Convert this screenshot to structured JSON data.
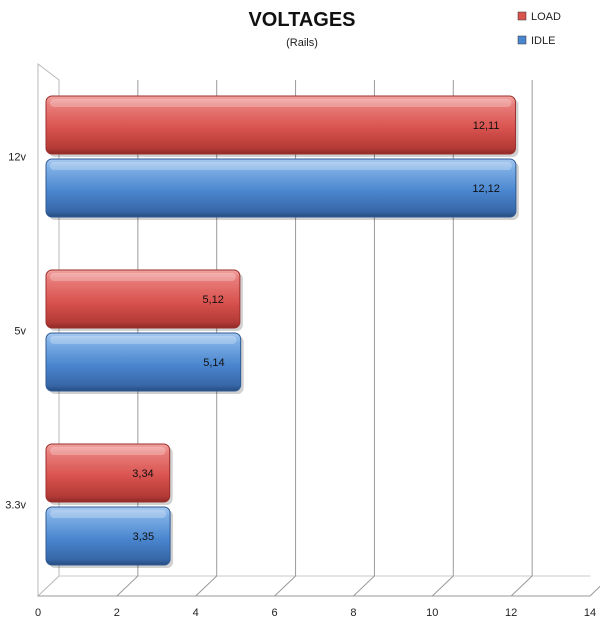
{
  "chart_data": {
    "type": "bar",
    "orientation": "horizontal",
    "title": "VOLTAGES",
    "subtitle": "(Rails)",
    "categories": [
      "12v",
      "5v",
      "3.3v"
    ],
    "series": [
      {
        "name": "LOAD",
        "values": [
          12.11,
          5.12,
          3.34
        ],
        "labels": [
          "12,11",
          "5,12",
          "3,34"
        ],
        "color": "#d9534f"
      },
      {
        "name": "IDLE",
        "values": [
          12.12,
          5.14,
          3.35
        ],
        "labels": [
          "12,12",
          "5,14",
          "3,35"
        ],
        "color": "#4a86cf"
      }
    ],
    "xlim": [
      0,
      14
    ],
    "xticks": [
      0,
      2,
      4,
      6,
      8,
      10,
      12,
      14
    ],
    "grid": true,
    "legend": "top-right"
  }
}
